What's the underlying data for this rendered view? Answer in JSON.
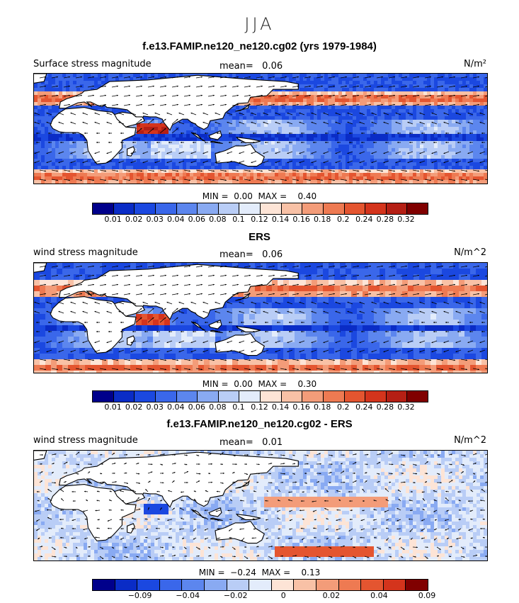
{
  "season": "JJA",
  "colors_abs": [
    "#00008b",
    "#0a2cc6",
    "#1b48e0",
    "#3a67ea",
    "#5c86ee",
    "#89aaf2",
    "#b9cdf6",
    "#e3ecfb",
    "#fde4d6",
    "#f8c1a6",
    "#f39c79",
    "#ee7a52",
    "#e45530",
    "#d4341c",
    "#b51f14",
    "#800000"
  ],
  "colors_diff": [
    "#00008b",
    "#0a2cc6",
    "#1b48e0",
    "#3a67ea",
    "#5c86ee",
    "#89aaf2",
    "#b9cdf6",
    "#e3ecfb",
    "#fde4d6",
    "#f8c1a6",
    "#f39c79",
    "#ee7a52",
    "#e45530",
    "#d4341c",
    "#800000"
  ],
  "panels": [
    {
      "title": "f.e13.FAMIP.ne120_ne120.cg02 (yrs 1979-1984)",
      "left_label": "Surface stress magnitude",
      "mean_label": "mean=",
      "mean_value": "0.06",
      "units": "N/m²",
      "min_label": "MIN =",
      "min_value": "0.00",
      "max_label": "MAX =",
      "max_value": "0.40",
      "ticks": [
        "0.01",
        "0.02",
        "0.03",
        "0.04",
        "0.06",
        "0.08",
        "0.1",
        "0.12",
        "0.14",
        "0.16",
        "0.18",
        "0.2",
        "0.24",
        "0.28",
        "0.32"
      ]
    },
    {
      "title": "ERS",
      "left_label": "wind stress magnitude",
      "mean_label": "mean=",
      "mean_value": "0.06",
      "units": "N/m^2",
      "min_label": "MIN =",
      "min_value": "0.00",
      "max_label": "MAX =",
      "max_value": "0.30",
      "ticks": [
        "0.01",
        "0.02",
        "0.03",
        "0.04",
        "0.06",
        "0.08",
        "0.1",
        "0.12",
        "0.14",
        "0.16",
        "0.18",
        "0.2",
        "0.24",
        "0.28",
        "0.32"
      ]
    },
    {
      "title": "f.e13.FAMIP.ne120_ne120.cg02 - ERS",
      "left_label": "wind stress magnitude",
      "mean_label": "mean=",
      "mean_value": "0.01",
      "units": "N/m^2",
      "min_label": "MIN =",
      "min_value": "−0.24",
      "max_label": "MAX =",
      "max_value": "0.13",
      "ticks": [
        "−0.09",
        "−0.04",
        "−0.02",
        "0",
        "0.02",
        "0.04",
        "0.09"
      ]
    }
  ]
}
